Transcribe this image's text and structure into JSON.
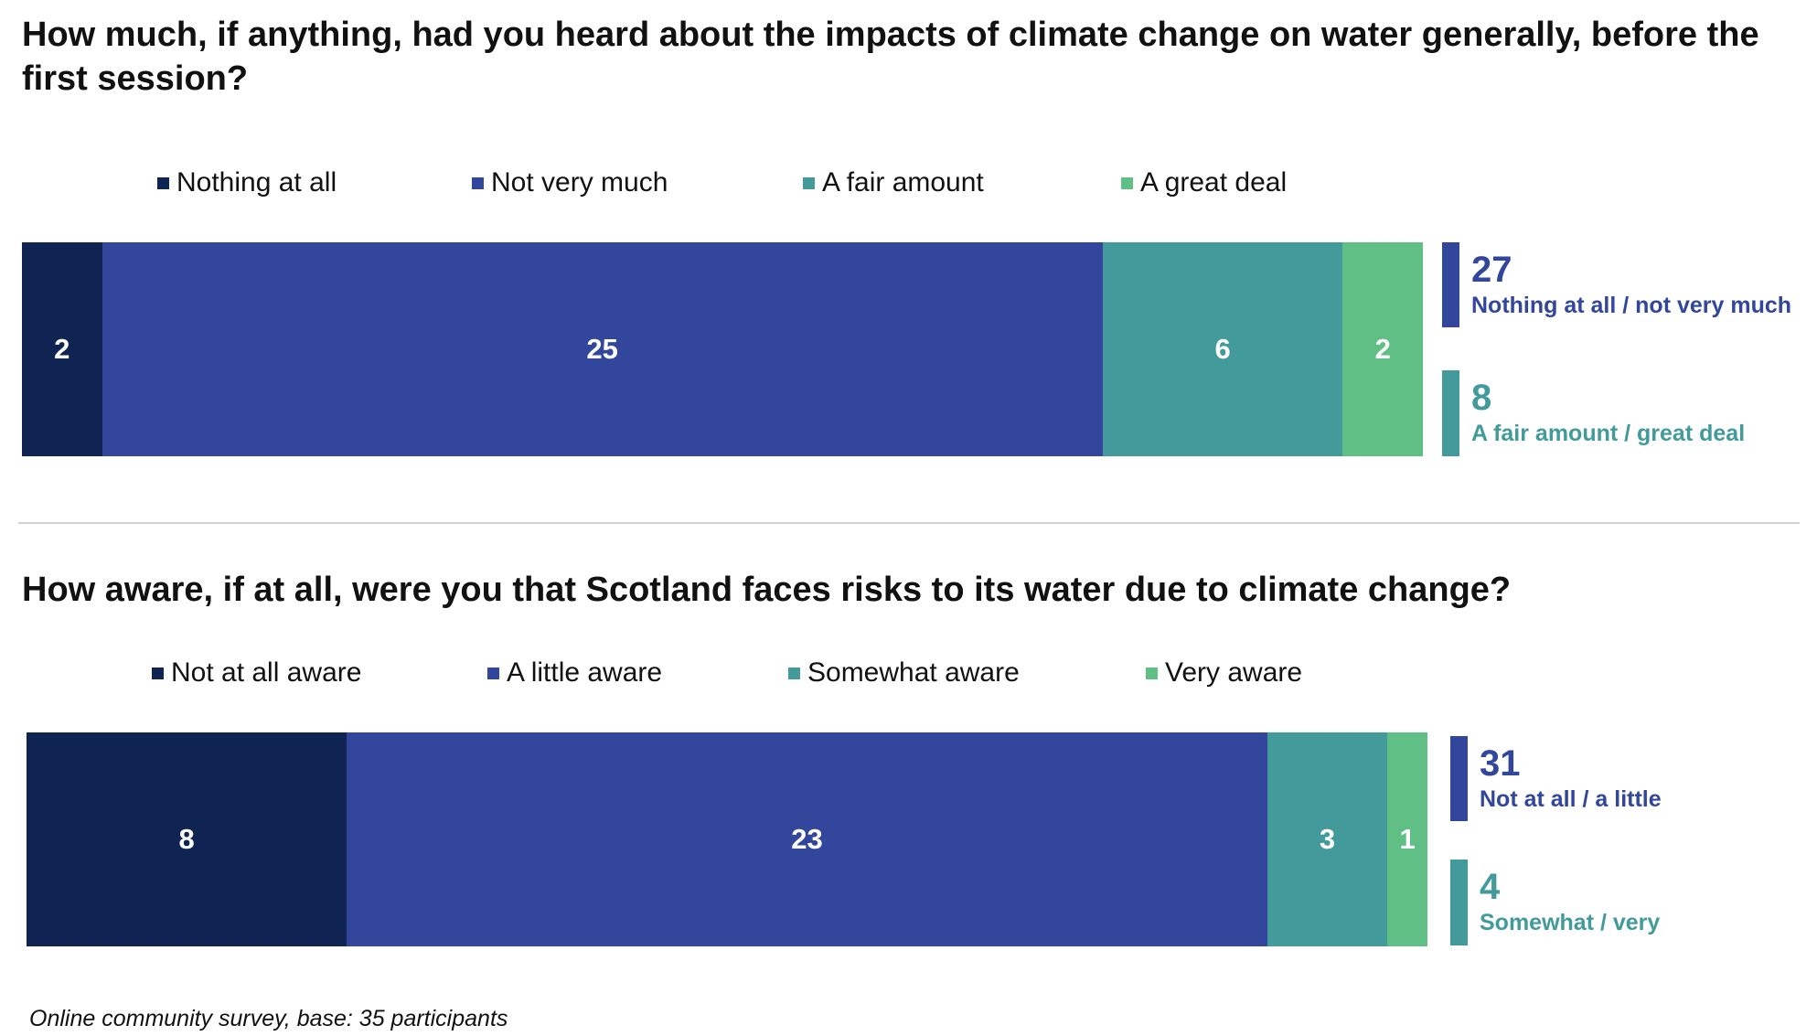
{
  "colors": {
    "nothing": "#0f2452",
    "not_much": "#32479c",
    "fair": "#439a9a",
    "great": "#5fbf85"
  },
  "footnote": "Online community survey, base: 35 participants",
  "chart_data": [
    {
      "type": "bar",
      "orientation": "horizontal-stacked",
      "title": "How much, if anything, had you heard about the impacts of climate change on water generally, before the first session?",
      "categories": [
        "Nothing at all",
        "Not very much",
        "A fair amount",
        "A great deal"
      ],
      "values": [
        2,
        25,
        6,
        2
      ],
      "legend_position": "top",
      "summary": [
        {
          "value": 27,
          "label": "Nothing at all / not very much"
        },
        {
          "value": 8,
          "label": "A fair amount / great deal"
        }
      ]
    },
    {
      "type": "bar",
      "orientation": "horizontal-stacked",
      "title": "How aware, if at all, were you that Scotland faces risks to its water due to climate change?",
      "categories": [
        "Not at all aware",
        "A little aware",
        "Somewhat aware",
        "Very aware"
      ],
      "values": [
        8,
        23,
        3,
        1
      ],
      "legend_position": "top",
      "summary": [
        {
          "value": 31,
          "label": "Not at all / a little"
        },
        {
          "value": 4,
          "label": "Somewhat / very"
        }
      ]
    }
  ]
}
